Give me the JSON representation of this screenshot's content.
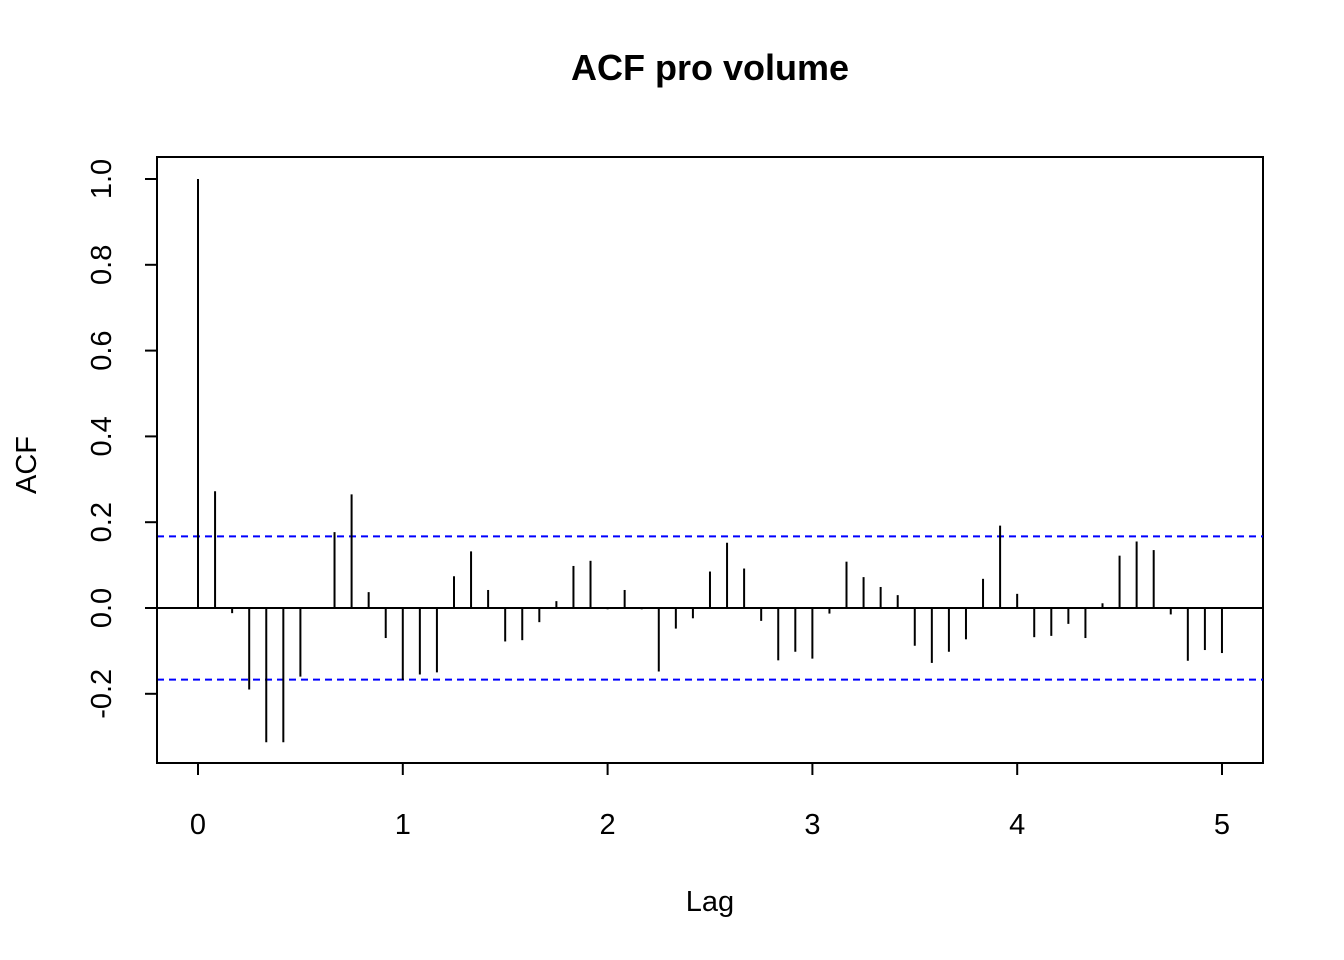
{
  "chart_data": {
    "type": "bar",
    "title": "ACF pro volume",
    "xlabel": "Lag",
    "ylabel": "ACF",
    "xlim": [
      0,
      5
    ],
    "ylim": [
      -0.31,
      1.0
    ],
    "x_ticks": [
      "0",
      "1",
      "2",
      "3",
      "4",
      "5"
    ],
    "y_ticks": [
      "-0.2",
      "0.0",
      "0.2",
      "0.4",
      "0.6",
      "0.8",
      "1.0"
    ],
    "confidence_bound": 0.167,
    "lag_step": 0.08333,
    "values": [
      1.0,
      0.272,
      -0.012,
      -0.19,
      -0.313,
      -0.313,
      -0.16,
      0.0,
      0.177,
      0.265,
      0.037,
      -0.07,
      -0.168,
      -0.155,
      -0.15,
      0.074,
      0.132,
      0.042,
      -0.078,
      -0.075,
      -0.033,
      0.016,
      0.098,
      0.11,
      -0.003,
      0.042,
      -0.003,
      -0.148,
      -0.048,
      -0.024,
      0.085,
      0.152,
      0.092,
      -0.03,
      -0.122,
      -0.102,
      -0.118,
      -0.013,
      0.108,
      0.072,
      0.049,
      0.03,
      -0.088,
      -0.128,
      -0.102,
      -0.073,
      0.068,
      0.192,
      0.033,
      -0.068,
      -0.065,
      -0.037,
      -0.07,
      0.011,
      0.122,
      0.155,
      0.135,
      -0.015,
      -0.123,
      -0.098,
      -0.105
    ],
    "colors": {
      "bars": "#000000",
      "bound": "#0000ff",
      "zero_line": "#000000"
    }
  }
}
